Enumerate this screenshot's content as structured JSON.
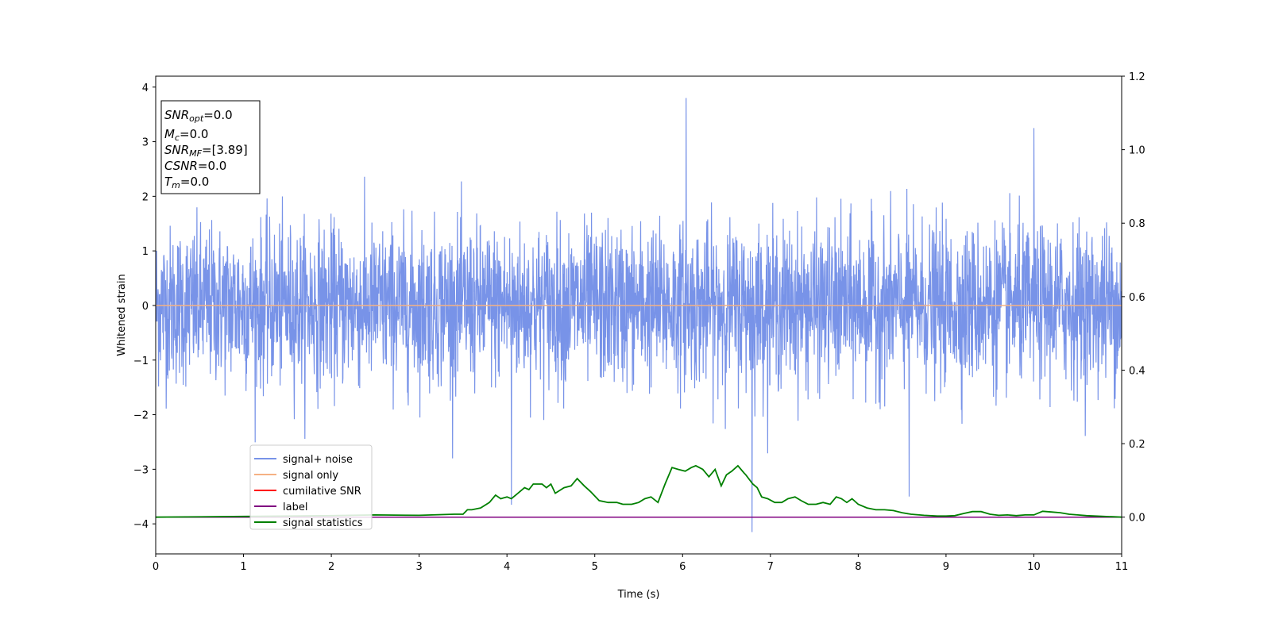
{
  "chart_data": {
    "type": "line",
    "xlabel": "Time (s)",
    "ylabel": "Whitened strain",
    "xlim": [
      0,
      11
    ],
    "ylim_left": [
      -4.55,
      4.2
    ],
    "ylim_right": [
      -0.1,
      1.2
    ],
    "x_ticks": [
      0,
      1,
      2,
      3,
      4,
      5,
      6,
      7,
      8,
      9,
      10,
      11
    ],
    "y_ticks_left": [
      -4,
      -3,
      -2,
      -1,
      0,
      1,
      2,
      3,
      4
    ],
    "y_ticks_right": [
      0.0,
      0.2,
      0.4,
      0.6,
      0.8,
      1.0,
      1.2
    ],
    "grid": false,
    "legend_placement": "lower-left",
    "info_box": {
      "snr_opt": {
        "base": "SNR",
        "sub": "opt",
        "value": "=0.0"
      },
      "mc": {
        "base": "M",
        "sub": "c",
        "value": "=0.0"
      },
      "snr_mf": {
        "base": "SNR",
        "sub": "MF",
        "value": "=[3.89]"
      },
      "csnr": {
        "base": "CSNR",
        "sub": "",
        "value": "=0.0"
      },
      "tm": {
        "base": "T",
        "sub": "m",
        "value": "=0.0"
      }
    },
    "series": [
      {
        "name": "signal+ noise",
        "color": "#7893e8",
        "axis": "left",
        "noise_band": [
          -1.3,
          1.3
        ],
        "peaks": [
          [
            4.05,
            -3.65
          ],
          [
            6.04,
            3.8
          ],
          [
            6.79,
            -4.15
          ],
          [
            8.58,
            -3.5
          ],
          [
            10.0,
            3.25
          ]
        ]
      },
      {
        "name": "signal only",
        "color": "#f5b183",
        "axis": "left",
        "constant": 0.0
      },
      {
        "name": "cumilative SNR",
        "color": "#ff0000",
        "axis": "right"
      },
      {
        "name": "label",
        "color": "#800080",
        "axis": "right",
        "constant": 0.0
      },
      {
        "name": "signal statistics",
        "color": "#008000",
        "axis": "right",
        "x": [
          0,
          1,
          2,
          2.5,
          3,
          3.4,
          3.5,
          3.55,
          3.6,
          3.7,
          3.8,
          3.87,
          3.93,
          4.0,
          4.05,
          4.1,
          4.2,
          4.25,
          4.3,
          4.4,
          4.45,
          4.5,
          4.55,
          4.65,
          4.73,
          4.8,
          4.88,
          4.95,
          5.05,
          5.15,
          5.25,
          5.32,
          5.42,
          5.5,
          5.57,
          5.64,
          5.72,
          5.8,
          5.88,
          5.95,
          6.03,
          6.1,
          6.15,
          6.23,
          6.3,
          6.37,
          6.44,
          6.5,
          6.56,
          6.63,
          6.7,
          6.72,
          6.8,
          6.85,
          6.9,
          6.97,
          7.05,
          7.13,
          7.2,
          7.28,
          7.35,
          7.43,
          7.52,
          7.6,
          7.68,
          7.75,
          7.81,
          7.87,
          7.93,
          8.0,
          8.1,
          8.2,
          8.3,
          8.4,
          8.5,
          8.6,
          8.75,
          8.9,
          9.0,
          9.1,
          9.2,
          9.3,
          9.4,
          9.5,
          9.6,
          9.7,
          9.8,
          9.9,
          10.0,
          10.1,
          10.2,
          10.3,
          10.4,
          10.5,
          10.6,
          10.7,
          10.8,
          10.9,
          11.0
        ],
        "y": [
          0.0,
          0.002,
          0.004,
          0.006,
          0.005,
          0.008,
          0.008,
          0.02,
          0.02,
          0.025,
          0.04,
          0.06,
          0.05,
          0.055,
          0.05,
          0.06,
          0.08,
          0.075,
          0.09,
          0.09,
          0.08,
          0.09,
          0.065,
          0.08,
          0.085,
          0.105,
          0.085,
          0.07,
          0.045,
          0.04,
          0.04,
          0.035,
          0.035,
          0.04,
          0.05,
          0.055,
          0.04,
          0.09,
          0.135,
          0.13,
          0.125,
          0.135,
          0.14,
          0.13,
          0.11,
          0.13,
          0.085,
          0.115,
          0.125,
          0.14,
          0.12,
          0.115,
          0.09,
          0.08,
          0.055,
          0.05,
          0.04,
          0.04,
          0.05,
          0.055,
          0.045,
          0.035,
          0.035,
          0.04,
          0.035,
          0.055,
          0.05,
          0.04,
          0.05,
          0.035,
          0.025,
          0.02,
          0.02,
          0.018,
          0.012,
          0.008,
          0.005,
          0.003,
          0.003,
          0.004,
          0.01,
          0.015,
          0.015,
          0.008,
          0.005,
          0.006,
          0.004,
          0.006,
          0.006,
          0.016,
          0.014,
          0.012,
          0.008,
          0.006,
          0.004,
          0.003,
          0.002,
          0.001,
          0.0
        ]
      }
    ]
  }
}
